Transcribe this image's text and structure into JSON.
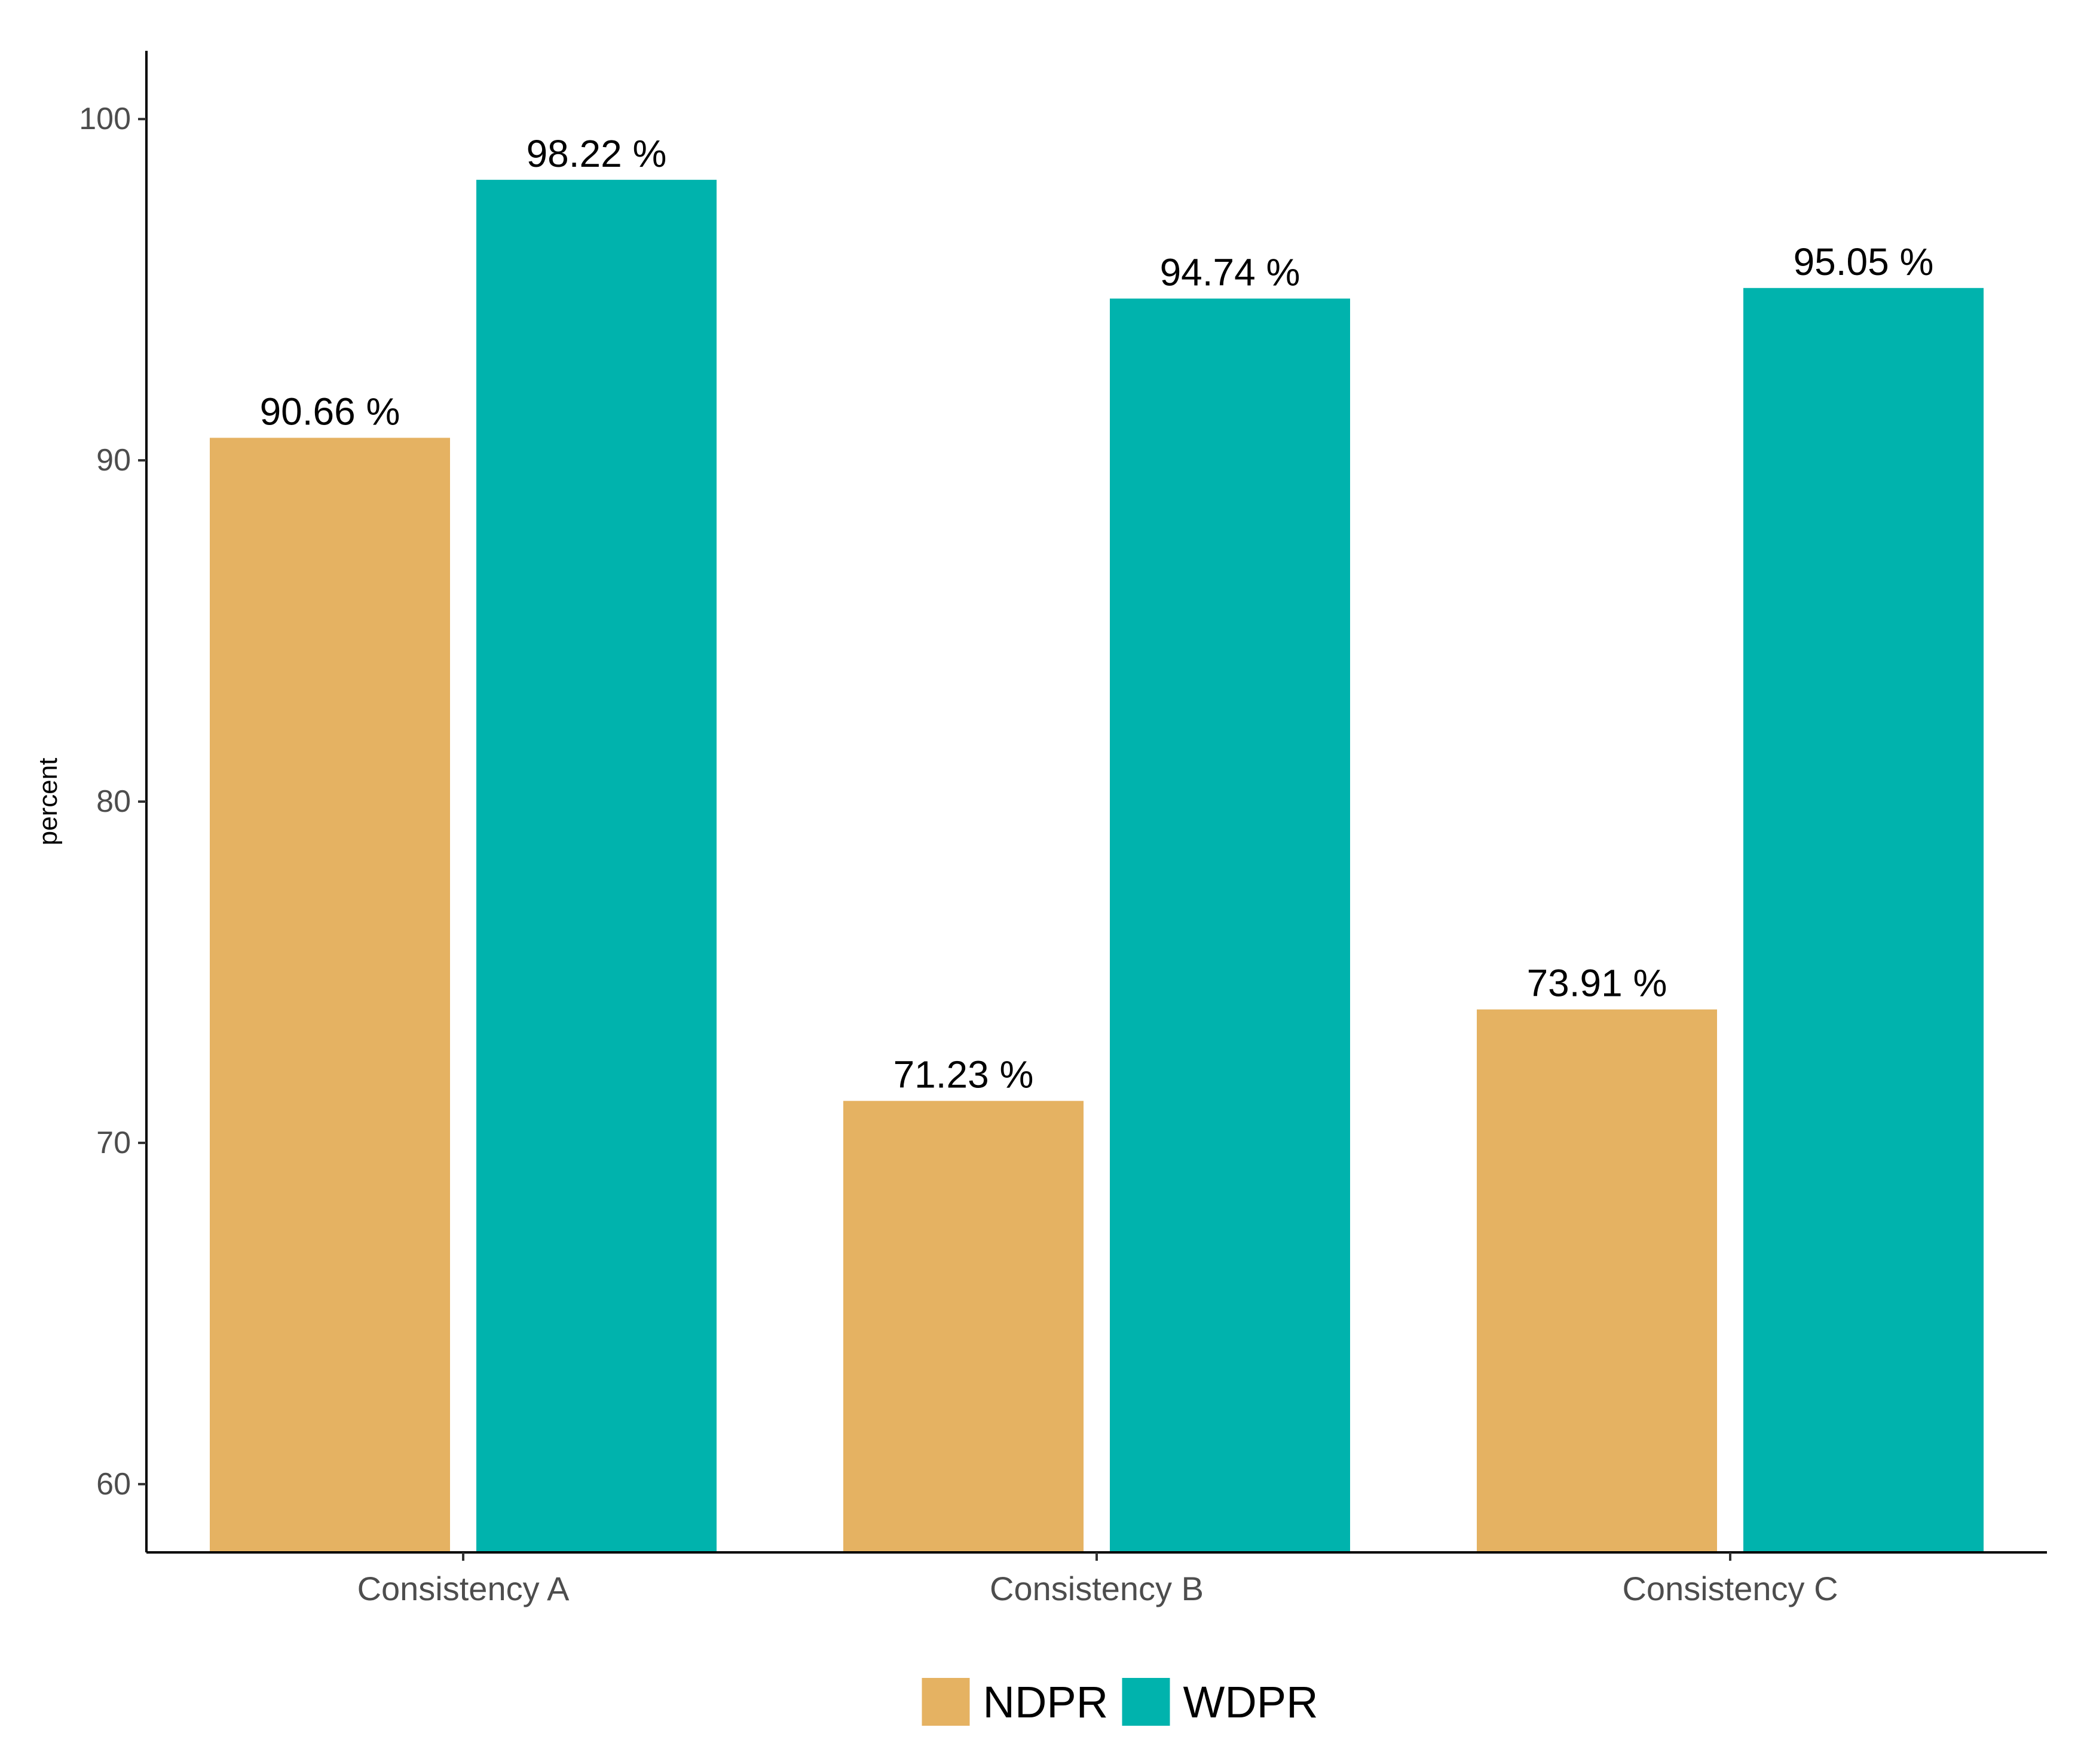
{
  "chart_data": {
    "type": "bar",
    "categories": [
      "Consistency A",
      "Consistency B",
      "Consistency C"
    ],
    "series": [
      {
        "name": "NDPR",
        "values": [
          90.66,
          71.23,
          73.91
        ],
        "color": "#E5B262"
      },
      {
        "name": "WDPR",
        "values": [
          98.22,
          94.74,
          95.05
        ],
        "color": "#00B3AD"
      }
    ],
    "data_labels": [
      [
        "90.66 %",
        "71.23 %",
        "73.91 %"
      ],
      [
        "98.22 %",
        "94.74 %",
        "95.05 %"
      ]
    ],
    "title": "",
    "xlabel": "",
    "ylabel": "percent",
    "ylim": [
      58,
      102
    ],
    "yticks": [
      60,
      70,
      80,
      90,
      100
    ],
    "grid": false,
    "legend_position": "bottom"
  }
}
